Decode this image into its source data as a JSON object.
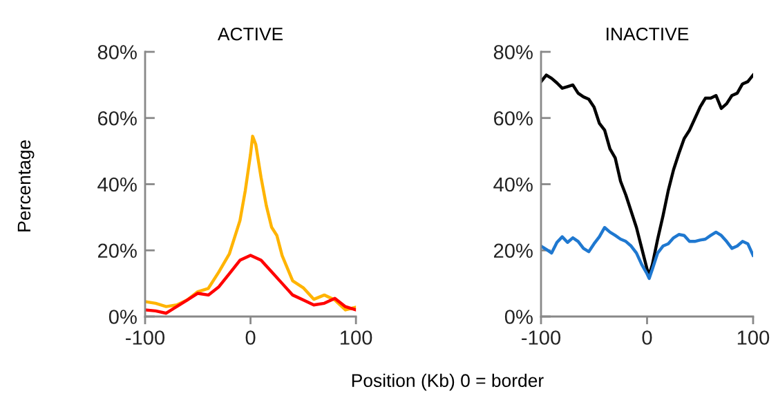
{
  "chart_data": [
    {
      "type": "line",
      "title": "ACTIVE",
      "ylabel": "Percentage",
      "x": [
        -100,
        -90,
        -80,
        -70,
        -60,
        -50,
        -40,
        -30,
        -20,
        -10,
        -5,
        0,
        2,
        5,
        10,
        15,
        20,
        25,
        30,
        40,
        50,
        60,
        70,
        80,
        90,
        100
      ],
      "series": [
        {
          "color": "#ffb400",
          "values": [
            4.5,
            4,
            3,
            3.5,
            5,
            7.5,
            8.5,
            13.5,
            19,
            29,
            38,
            49,
            54.5,
            52,
            42,
            33.5,
            27,
            24.5,
            18.4,
            10.8,
            8.7,
            5.2,
            6.5,
            5,
            2,
            2.8
          ]
        },
        {
          "color": "#ff0000",
          "x": [
            -100,
            -90,
            -80,
            -70,
            -60,
            -50,
            -40,
            -30,
            -20,
            -10,
            0,
            10,
            20,
            30,
            40,
            50,
            60,
            70,
            80,
            90,
            100
          ],
          "values": [
            2,
            1.7,
            1,
            3,
            5,
            7,
            6.5,
            9,
            13,
            17,
            18.5,
            17,
            13.5,
            10,
            6.5,
            5,
            3.5,
            4,
            5.5,
            3,
            2
          ]
        }
      ],
      "xlim": [
        -100,
        100
      ],
      "xticks": [
        -100,
        0,
        100
      ],
      "ylim": [
        0,
        80
      ],
      "yticks": [
        {
          "value": 0,
          "label": "0%"
        },
        {
          "value": 20,
          "label": "20%"
        },
        {
          "value": 40,
          "label": "40%"
        },
        {
          "value": 60,
          "label": "60%"
        },
        {
          "value": 80,
          "label": "80%"
        }
      ],
      "line_style": "solid"
    },
    {
      "type": "line",
      "title": "INACTIVE",
      "xlabel": "Position (Kb) 0 = border",
      "x": [
        -100,
        -95,
        -90,
        -85,
        -80,
        -75,
        -70,
        -65,
        -60,
        -55,
        -50,
        -45,
        -40,
        -35,
        -30,
        -25,
        -20,
        -15,
        -10,
        -5,
        0,
        2,
        5,
        10,
        15,
        20,
        25,
        30,
        35,
        40,
        45,
        50,
        55,
        60,
        65,
        70,
        75,
        80,
        85,
        90,
        95,
        100
      ],
      "series": [
        {
          "color": "#000000",
          "values": [
            71,
            73,
            72,
            70.6,
            69,
            69.5,
            70,
            67.5,
            66.4,
            65.7,
            63.3,
            58.4,
            56.3,
            50.7,
            47.9,
            40.9,
            36.7,
            31.8,
            26.9,
            20.6,
            14.3,
            12.6,
            15.7,
            23.4,
            30.4,
            38.1,
            44.4,
            49.3,
            53.8,
            56.3,
            59.8,
            63.3,
            66,
            66,
            66.8,
            62.9,
            64.3,
            66.8,
            67.5,
            70.3,
            71,
            73
          ]
        },
        {
          "color": "#1f78d0",
          "values": [
            21.3,
            20.3,
            19.2,
            22.4,
            24.1,
            22.4,
            23.8,
            22.7,
            20.6,
            19.6,
            22,
            24.1,
            26.9,
            25.5,
            24.5,
            23.4,
            22.7,
            21.3,
            19.2,
            15.7,
            12.9,
            11.5,
            14.3,
            19.2,
            21.3,
            22,
            23.8,
            24.8,
            24.5,
            22.7,
            22.7,
            23.1,
            23.4,
            24.5,
            25.5,
            24.5,
            22.7,
            20.6,
            21.3,
            22.7,
            22,
            18.5
          ]
        }
      ],
      "xlim": [
        -100,
        100
      ],
      "xticks": [
        -100,
        0,
        100
      ],
      "ylim": [
        0,
        80
      ],
      "yticks": [
        {
          "value": 0,
          "label": "0%"
        },
        {
          "value": 20,
          "label": "20%"
        },
        {
          "value": 40,
          "label": "40%"
        },
        {
          "value": 60,
          "label": "60%"
        },
        {
          "value": 80,
          "label": "80%"
        }
      ],
      "line_style": "solid"
    }
  ]
}
